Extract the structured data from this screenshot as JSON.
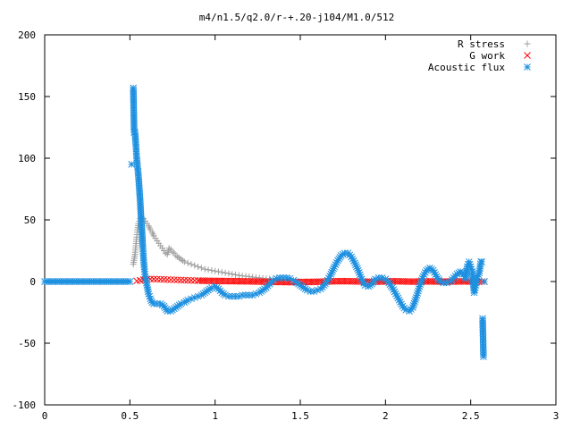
{
  "chart_data": {
    "type": "scatter",
    "title": "m4/n1.5/q2.0/r-+.20-j104/M1.0/512",
    "xlim": [
      0,
      3
    ],
    "ylim": [
      -100,
      200
    ],
    "xticks": [
      "0",
      "0.5",
      "1",
      "1.5",
      "2",
      "2.5",
      "3"
    ],
    "xtick_values": [
      0,
      0.5,
      1,
      1.5,
      2,
      2.5,
      3
    ],
    "yticks": [
      "-100",
      "-50",
      "0",
      "50",
      "100",
      "150",
      "200"
    ],
    "ytick_values": [
      -100,
      -50,
      0,
      50,
      100,
      150,
      200
    ],
    "grid": false,
    "legend_position": "top-right",
    "series": [
      {
        "name": "R stress",
        "marker": "plus",
        "color": "#a0a0a0",
        "points": [
          [
            0.52,
            14
          ],
          [
            0.53,
            22
          ],
          [
            0.535,
            29
          ],
          [
            0.54,
            36
          ],
          [
            0.545,
            42
          ],
          [
            0.55,
            47
          ],
          [
            0.56,
            51
          ],
          [
            0.57,
            52
          ],
          [
            0.58,
            51
          ],
          [
            0.59,
            49
          ],
          [
            0.6,
            47
          ],
          [
            0.61,
            45
          ],
          [
            0.62,
            42
          ],
          [
            0.63,
            40
          ],
          [
            0.64,
            37
          ],
          [
            0.65,
            35
          ],
          [
            0.66,
            33
          ],
          [
            0.67,
            31
          ],
          [
            0.68,
            29
          ],
          [
            0.69,
            27
          ],
          [
            0.7,
            25
          ],
          [
            0.71,
            23
          ],
          [
            0.72,
            22
          ],
          [
            0.73,
            27
          ],
          [
            0.74,
            26
          ],
          [
            0.75,
            24
          ],
          [
            0.76,
            23
          ],
          [
            0.77,
            21
          ],
          [
            0.78,
            20
          ],
          [
            0.79,
            19
          ],
          [
            0.8,
            18
          ],
          [
            0.82,
            16
          ],
          [
            0.84,
            15
          ],
          [
            0.86,
            14
          ],
          [
            0.88,
            13
          ],
          [
            0.9,
            12
          ],
          [
            0.92,
            11
          ],
          [
            0.94,
            10
          ],
          [
            0.96,
            9.5
          ],
          [
            0.98,
            9
          ],
          [
            1.0,
            8.5
          ],
          [
            1.02,
            8
          ],
          [
            1.04,
            7.5
          ],
          [
            1.06,
            7
          ],
          [
            1.08,
            6.5
          ],
          [
            1.1,
            6
          ],
          [
            1.12,
            5.5
          ],
          [
            1.14,
            5
          ],
          [
            1.16,
            4.6
          ],
          [
            1.18,
            4.3
          ],
          [
            1.2,
            4
          ],
          [
            1.22,
            3.6
          ],
          [
            1.24,
            3.3
          ],
          [
            1.26,
            3
          ],
          [
            1.28,
            2.7
          ],
          [
            1.3,
            2.4
          ],
          [
            1.32,
            2.2
          ],
          [
            1.34,
            2
          ],
          [
            1.36,
            1.8
          ],
          [
            1.38,
            1.6
          ],
          [
            1.4,
            1.4
          ]
        ]
      },
      {
        "name": "G work",
        "marker": "cross",
        "color": "#ff0000",
        "points": [
          [
            0.54,
            0.5
          ],
          [
            0.56,
            1.0
          ],
          [
            0.58,
            1.5
          ],
          [
            0.6,
            1.8
          ],
          [
            0.62,
            2.0
          ],
          [
            0.64,
            2.0
          ],
          [
            0.66,
            1.9
          ],
          [
            0.68,
            1.8
          ],
          [
            0.7,
            1.7
          ],
          [
            0.72,
            1.6
          ],
          [
            0.74,
            1.5
          ],
          [
            0.76,
            1.4
          ],
          [
            0.78,
            1.3
          ],
          [
            0.8,
            1.2
          ],
          [
            0.82,
            1.1
          ],
          [
            0.84,
            1.0
          ],
          [
            0.86,
            0.9
          ],
          [
            0.88,
            0.8
          ],
          [
            0.9,
            0.7
          ],
          [
            0.95,
            0.6
          ],
          [
            1.0,
            0.5
          ],
          [
            1.05,
            0.4
          ],
          [
            1.1,
            0.3
          ],
          [
            1.15,
            0.2
          ],
          [
            1.2,
            0.1
          ],
          [
            1.25,
            0.0
          ],
          [
            1.3,
            -0.2
          ],
          [
            1.35,
            -0.3
          ],
          [
            1.4,
            -0.4
          ],
          [
            1.45,
            -0.5
          ],
          [
            1.5,
            -0.4
          ],
          [
            1.55,
            -0.3
          ],
          [
            1.6,
            -0.2
          ],
          [
            1.65,
            0.0
          ],
          [
            1.7,
            0.2
          ],
          [
            1.75,
            0.3
          ],
          [
            1.8,
            0.2
          ],
          [
            1.85,
            0.0
          ],
          [
            1.9,
            -0.2
          ],
          [
            1.95,
            -0.1
          ],
          [
            2.0,
            0.1
          ],
          [
            2.05,
            0.2
          ],
          [
            2.1,
            0.1
          ],
          [
            2.15,
            -0.1
          ],
          [
            2.2,
            0.0
          ],
          [
            2.25,
            0.1
          ],
          [
            2.3,
            0.0
          ],
          [
            2.35,
            -0.1
          ],
          [
            2.4,
            0.0
          ],
          [
            2.45,
            0.1
          ],
          [
            2.5,
            0.0
          ],
          [
            2.55,
            -0.1
          ],
          [
            2.58,
            0.0
          ]
        ]
      },
      {
        "name": "Acoustic flux",
        "marker": "star",
        "color": "#1e90e0",
        "points": [
          [
            0.0,
            0
          ],
          [
            0.05,
            0
          ],
          [
            0.1,
            0
          ],
          [
            0.15,
            0
          ],
          [
            0.2,
            0
          ],
          [
            0.25,
            0
          ],
          [
            0.3,
            0
          ],
          [
            0.35,
            0
          ],
          [
            0.4,
            0
          ],
          [
            0.45,
            0
          ],
          [
            0.5,
            0
          ],
          [
            0.51,
            95
          ],
          [
            0.52,
            157
          ],
          [
            0.525,
            121
          ],
          [
            0.53,
            121
          ],
          [
            0.535,
            111
          ],
          [
            0.54,
            100
          ],
          [
            0.55,
            86
          ],
          [
            0.555,
            76
          ],
          [
            0.56,
            66
          ],
          [
            0.565,
            53
          ],
          [
            0.57,
            43
          ],
          [
            0.575,
            30
          ],
          [
            0.58,
            19
          ],
          [
            0.585,
            10
          ],
          [
            0.59,
            4
          ],
          [
            0.6,
            -3
          ],
          [
            0.61,
            -10
          ],
          [
            0.62,
            -14
          ],
          [
            0.63,
            -17
          ],
          [
            0.64,
            -18
          ],
          [
            0.66,
            -18
          ],
          [
            0.68,
            -18
          ],
          [
            0.7,
            -20
          ],
          [
            0.72,
            -24
          ],
          [
            0.74,
            -24
          ],
          [
            0.76,
            -22
          ],
          [
            0.78,
            -20
          ],
          [
            0.8,
            -18
          ],
          [
            0.82,
            -17
          ],
          [
            0.84,
            -15
          ],
          [
            0.86,
            -14
          ],
          [
            0.88,
            -13
          ],
          [
            0.9,
            -12
          ],
          [
            0.92,
            -11
          ],
          [
            0.94,
            -9
          ],
          [
            0.96,
            -7
          ],
          [
            0.98,
            -5
          ],
          [
            1.0,
            -4
          ],
          [
            1.02,
            -6
          ],
          [
            1.04,
            -9
          ],
          [
            1.06,
            -11
          ],
          [
            1.08,
            -12
          ],
          [
            1.1,
            -12
          ],
          [
            1.12,
            -12
          ],
          [
            1.14,
            -12
          ],
          [
            1.16,
            -11
          ],
          [
            1.18,
            -11
          ],
          [
            1.2,
            -11
          ],
          [
            1.22,
            -11
          ],
          [
            1.24,
            -10
          ],
          [
            1.26,
            -9
          ],
          [
            1.28,
            -7
          ],
          [
            1.3,
            -5
          ],
          [
            1.32,
            -2
          ],
          [
            1.34,
            1
          ],
          [
            1.36,
            2.5
          ],
          [
            1.38,
            3
          ],
          [
            1.4,
            3
          ],
          [
            1.42,
            3
          ],
          [
            1.44,
            2.5
          ],
          [
            1.46,
            1
          ],
          [
            1.48,
            -1
          ],
          [
            1.5,
            -3
          ],
          [
            1.52,
            -5
          ],
          [
            1.54,
            -7
          ],
          [
            1.56,
            -8
          ],
          [
            1.58,
            -8
          ],
          [
            1.6,
            -7
          ],
          [
            1.62,
            -6
          ],
          [
            1.64,
            -3
          ],
          [
            1.66,
            1
          ],
          [
            1.68,
            6
          ],
          [
            1.7,
            12
          ],
          [
            1.72,
            17
          ],
          [
            1.74,
            21
          ],
          [
            1.76,
            23
          ],
          [
            1.78,
            23
          ],
          [
            1.8,
            20
          ],
          [
            1.82,
            15
          ],
          [
            1.84,
            9
          ],
          [
            1.86,
            2
          ],
          [
            1.88,
            -3
          ],
          [
            1.9,
            -4
          ],
          [
            1.92,
            -2
          ],
          [
            1.94,
            2
          ],
          [
            1.96,
            3
          ],
          [
            1.98,
            3
          ],
          [
            2.0,
            2
          ],
          [
            2.02,
            -1
          ],
          [
            2.04,
            -5
          ],
          [
            2.06,
            -10
          ],
          [
            2.08,
            -15
          ],
          [
            2.1,
            -20
          ],
          [
            2.12,
            -23
          ],
          [
            2.14,
            -24
          ],
          [
            2.16,
            -21
          ],
          [
            2.18,
            -13
          ],
          [
            2.2,
            -4
          ],
          [
            2.22,
            4
          ],
          [
            2.24,
            9
          ],
          [
            2.26,
            11
          ],
          [
            2.28,
            9
          ],
          [
            2.3,
            4
          ],
          [
            2.32,
            0
          ],
          [
            2.34,
            -1
          ],
          [
            2.36,
            -1
          ],
          [
            2.38,
            0
          ],
          [
            2.4,
            3
          ],
          [
            2.42,
            6
          ],
          [
            2.44,
            8
          ],
          [
            2.46,
            6
          ],
          [
            2.47,
            2
          ],
          [
            2.48,
            12
          ],
          [
            2.49,
            16
          ],
          [
            2.5,
            12
          ],
          [
            2.51,
            8
          ],
          [
            2.52,
            -9
          ],
          [
            2.53,
            -3
          ],
          [
            2.54,
            4
          ],
          [
            2.55,
            7
          ],
          [
            2.56,
            16
          ],
          [
            2.565,
            16
          ],
          [
            2.57,
            -30
          ],
          [
            2.575,
            -61
          ],
          [
            2.58,
            0
          ]
        ]
      }
    ]
  }
}
